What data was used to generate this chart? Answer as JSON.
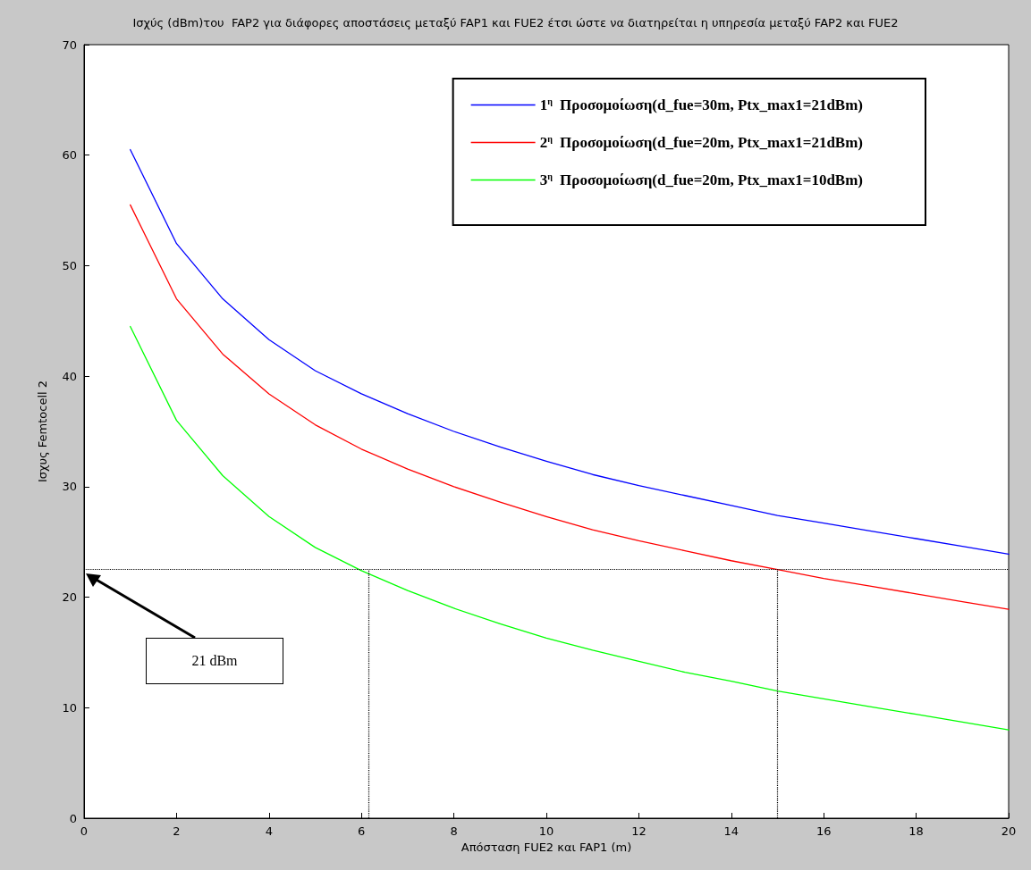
{
  "chart_data": {
    "type": "line",
    "title": "Ισχύς (dBm)του  FAP2 για διάφορες αποστάσεις μεταξύ FAP1 και FUE2 έτσι ώστε να διατηρείται η υπηρεσία μεταξύ FAP2 και FUE2",
    "xlabel": "Απόσταση FUE2 και FAP1 (m)",
    "ylabel": "Ισχυς Femtocell 2",
    "x": [
      1,
      2,
      3,
      4,
      5,
      6,
      7,
      8,
      9,
      10,
      11,
      12,
      13,
      14,
      15,
      16,
      17,
      18,
      19,
      20
    ],
    "series": [
      {
        "name": "1$^{η}$ Προσομοίωση(d_fue=30m, Ptx_max1=21dBm)",
        "color": "#0000ff",
        "values": [
          60.5,
          52,
          47,
          43.3,
          40.5,
          38.4,
          36.6,
          35,
          33.6,
          32.3,
          31.1,
          30.1,
          29.2,
          28.3,
          27.4,
          26.7,
          26,
          25.3,
          24.6,
          23.9
        ]
      },
      {
        "name": "2$^{η}$ Προσομοίωση(d_fue=20m, Ptx_max1=21dBm)",
        "color": "#ff0000",
        "values": [
          55.5,
          47,
          42,
          38.4,
          35.6,
          33.4,
          31.6,
          30,
          28.6,
          27.3,
          26.1,
          25.1,
          24.2,
          23.3,
          22.5,
          21.7,
          21,
          20.3,
          19.6,
          18.9
        ]
      },
      {
        "name": "3$^{η}$ Προσομοίωση(d_fue=20m, Ptx_max1=10dBm)",
        "color": "#00ff00",
        "values": [
          44.5,
          36,
          31,
          27.3,
          24.5,
          22.4,
          20.6,
          19,
          17.6,
          16.3,
          15.2,
          14.2,
          13.2,
          12.4,
          11.5,
          10.8,
          10.1,
          9.4,
          8.7,
          8.0
        ]
      }
    ],
    "xlim": [
      0,
      20
    ],
    "xticks": [
      0,
      2,
      4,
      6,
      8,
      10,
      12,
      14,
      16,
      18,
      20
    ],
    "ylim": [
      0,
      70
    ],
    "yticks": [
      0,
      10,
      20,
      30,
      40,
      50,
      60,
      70
    ],
    "ref_lines": [
      {
        "axis": "y",
        "value": 22.5,
        "color": "#000000",
        "line_style": "dotted"
      },
      {
        "axis": "x",
        "value": 6.15,
        "color": "#000000",
        "line_style": "dotted"
      },
      {
        "axis": "x",
        "value": 15,
        "color": "#000000",
        "line_style": "dotted"
      }
    ],
    "annotations": [
      "21 dBm"
    ],
    "grid": false,
    "legend": "top right",
    "marker": "none",
    "line_style": "solid"
  }
}
